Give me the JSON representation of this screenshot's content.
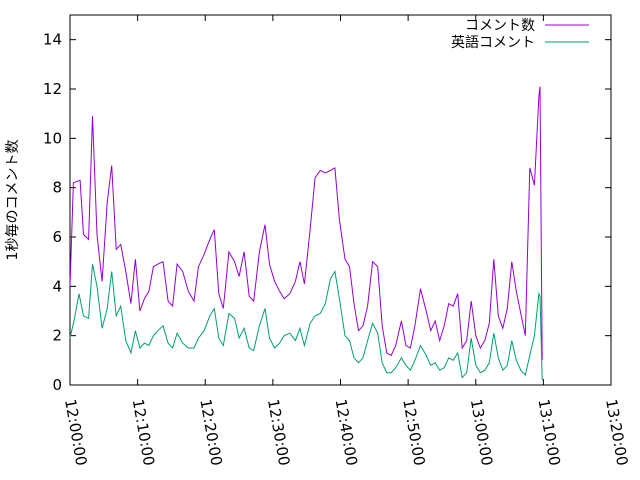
{
  "chart_data": {
    "type": "line",
    "title": "",
    "xlabel": "",
    "ylabel": "1秒毎のコメント数",
    "xlim": [
      "12:00:00",
      "13:20:00"
    ],
    "ylim": [
      0,
      15
    ],
    "grid": false,
    "legend": "top-right",
    "x_ticks": [
      "12:00:00",
      "12:10:00",
      "12:20:00",
      "12:30:00",
      "12:40:00",
      "12:50:00",
      "13:00:00",
      "13:10:00",
      "13:20:00"
    ],
    "y_ticks": [
      0,
      2,
      4,
      6,
      8,
      10,
      12,
      14
    ],
    "series": [
      {
        "name": "コメント数",
        "color": "#9400d3",
        "points": [
          [
            "12:00:00",
            4.0
          ],
          [
            "12:00:30",
            8.2
          ],
          [
            "12:01:30",
            8.3
          ],
          [
            "12:02:00",
            6.1
          ],
          [
            "12:02:45",
            5.9
          ],
          [
            "12:03:20",
            10.9
          ],
          [
            "12:04:00",
            6.1
          ],
          [
            "12:04:45",
            4.2
          ],
          [
            "12:05:30",
            7.4
          ],
          [
            "12:06:10",
            8.9
          ],
          [
            "12:06:50",
            5.5
          ],
          [
            "12:07:30",
            5.7
          ],
          [
            "12:08:15",
            4.6
          ],
          [
            "12:09:00",
            3.3
          ],
          [
            "12:09:40",
            5.1
          ],
          [
            "12:10:20",
            3.0
          ],
          [
            "12:11:00",
            3.5
          ],
          [
            "12:11:40",
            3.8
          ],
          [
            "12:12:20",
            4.8
          ],
          [
            "12:13:00",
            4.9
          ],
          [
            "12:13:45",
            5.0
          ],
          [
            "12:14:30",
            3.4
          ],
          [
            "12:15:10",
            3.2
          ],
          [
            "12:15:50",
            4.9
          ],
          [
            "12:16:40",
            4.6
          ],
          [
            "12:17:30",
            3.8
          ],
          [
            "12:18:20",
            3.4
          ],
          [
            "12:19:00",
            4.8
          ],
          [
            "12:19:50",
            5.3
          ],
          [
            "12:20:40",
            5.9
          ],
          [
            "12:21:20",
            6.3
          ],
          [
            "12:22:00",
            3.7
          ],
          [
            "12:22:40",
            3.1
          ],
          [
            "12:23:30",
            5.4
          ],
          [
            "12:24:20",
            5.0
          ],
          [
            "12:25:00",
            4.4
          ],
          [
            "12:25:45",
            5.4
          ],
          [
            "12:26:30",
            3.6
          ],
          [
            "12:27:10",
            3.4
          ],
          [
            "12:28:00",
            5.4
          ],
          [
            "12:28:50",
            6.5
          ],
          [
            "12:29:30",
            4.9
          ],
          [
            "12:30:15",
            4.2
          ],
          [
            "12:31:00",
            3.8
          ],
          [
            "12:31:40",
            3.5
          ],
          [
            "12:32:30",
            3.7
          ],
          [
            "12:33:20",
            4.2
          ],
          [
            "12:34:00",
            5.0
          ],
          [
            "12:34:40",
            4.1
          ],
          [
            "12:35:30",
            6.3
          ],
          [
            "12:36:15",
            8.4
          ],
          [
            "12:37:00",
            8.7
          ],
          [
            "12:37:45",
            8.6
          ],
          [
            "12:38:30",
            8.7
          ],
          [
            "12:39:10",
            8.8
          ],
          [
            "12:39:50",
            6.7
          ],
          [
            "12:40:40",
            5.1
          ],
          [
            "12:41:20",
            4.8
          ],
          [
            "12:42:00",
            3.3
          ],
          [
            "12:42:40",
            2.2
          ],
          [
            "12:43:20",
            2.4
          ],
          [
            "12:44:00",
            3.2
          ],
          [
            "12:44:45",
            5.0
          ],
          [
            "12:45:30",
            4.8
          ],
          [
            "12:46:10",
            2.4
          ],
          [
            "12:46:50",
            1.3
          ],
          [
            "12:47:30",
            1.2
          ],
          [
            "12:48:10",
            1.6
          ],
          [
            "12:49:00",
            2.6
          ],
          [
            "12:49:40",
            1.6
          ],
          [
            "12:50:20",
            1.5
          ],
          [
            "12:51:00",
            2.4
          ],
          [
            "12:51:50",
            3.9
          ],
          [
            "12:52:40",
            3.0
          ],
          [
            "12:53:20",
            2.2
          ],
          [
            "12:54:00",
            2.6
          ],
          [
            "12:54:40",
            1.8
          ],
          [
            "12:55:20",
            2.4
          ],
          [
            "12:56:00",
            3.3
          ],
          [
            "12:56:40",
            3.2
          ],
          [
            "12:57:20",
            3.7
          ],
          [
            "12:58:00",
            1.5
          ],
          [
            "12:58:40",
            1.8
          ],
          [
            "12:59:20",
            3.4
          ],
          [
            "13:00:00",
            2.0
          ],
          [
            "13:00:40",
            1.5
          ],
          [
            "13:01:20",
            1.8
          ],
          [
            "13:02:00",
            2.5
          ],
          [
            "13:02:40",
            5.1
          ],
          [
            "13:03:20",
            2.8
          ],
          [
            "13:04:00",
            2.3
          ],
          [
            "13:04:40",
            3.1
          ],
          [
            "13:05:20",
            5.0
          ],
          [
            "13:06:00",
            3.8
          ],
          [
            "13:06:40",
            2.9
          ],
          [
            "13:07:20",
            2.0
          ],
          [
            "13:08:00",
            8.8
          ],
          [
            "13:08:40",
            8.1
          ],
          [
            "13:09:20",
            11.7
          ],
          [
            "13:09:30",
            12.1
          ],
          [
            "13:09:50",
            1.0
          ]
        ]
      },
      {
        "name": "英語コメント",
        "color": "#009e73",
        "points": [
          [
            "12:00:00",
            1.9
          ],
          [
            "12:00:40",
            2.7
          ],
          [
            "12:01:20",
            3.7
          ],
          [
            "12:02:00",
            2.8
          ],
          [
            "12:02:45",
            2.7
          ],
          [
            "12:03:20",
            4.9
          ],
          [
            "12:04:00",
            4.0
          ],
          [
            "12:04:45",
            2.3
          ],
          [
            "12:05:30",
            3.1
          ],
          [
            "12:06:10",
            4.6
          ],
          [
            "12:06:50",
            2.8
          ],
          [
            "12:07:30",
            3.2
          ],
          [
            "12:08:15",
            1.8
          ],
          [
            "12:09:00",
            1.3
          ],
          [
            "12:09:40",
            2.2
          ],
          [
            "12:10:20",
            1.5
          ],
          [
            "12:11:00",
            1.7
          ],
          [
            "12:11:40",
            1.6
          ],
          [
            "12:12:20",
            2.0
          ],
          [
            "12:13:00",
            2.2
          ],
          [
            "12:13:45",
            2.4
          ],
          [
            "12:14:30",
            1.7
          ],
          [
            "12:15:10",
            1.5
          ],
          [
            "12:15:50",
            2.1
          ],
          [
            "12:16:40",
            1.7
          ],
          [
            "12:17:30",
            1.5
          ],
          [
            "12:18:20",
            1.5
          ],
          [
            "12:19:00",
            1.9
          ],
          [
            "12:19:50",
            2.2
          ],
          [
            "12:20:40",
            2.8
          ],
          [
            "12:21:20",
            3.1
          ],
          [
            "12:22:00",
            1.9
          ],
          [
            "12:22:40",
            1.6
          ],
          [
            "12:23:30",
            2.9
          ],
          [
            "12:24:20",
            2.7
          ],
          [
            "12:25:00",
            1.9
          ],
          [
            "12:25:45",
            2.3
          ],
          [
            "12:26:30",
            1.5
          ],
          [
            "12:27:10",
            1.4
          ],
          [
            "12:28:00",
            2.4
          ],
          [
            "12:28:50",
            3.1
          ],
          [
            "12:29:30",
            1.9
          ],
          [
            "12:30:15",
            1.5
          ],
          [
            "12:31:00",
            1.7
          ],
          [
            "12:31:40",
            2.0
          ],
          [
            "12:32:30",
            2.1
          ],
          [
            "12:33:20",
            1.8
          ],
          [
            "12:34:00",
            2.3
          ],
          [
            "12:34:40",
            1.6
          ],
          [
            "12:35:30",
            2.5
          ],
          [
            "12:36:15",
            2.8
          ],
          [
            "12:37:00",
            2.9
          ],
          [
            "12:37:45",
            3.3
          ],
          [
            "12:38:30",
            4.3
          ],
          [
            "12:39:10",
            4.6
          ],
          [
            "12:39:50",
            3.5
          ],
          [
            "12:40:40",
            2.0
          ],
          [
            "12:41:20",
            1.8
          ],
          [
            "12:42:00",
            1.1
          ],
          [
            "12:42:40",
            0.9
          ],
          [
            "12:43:20",
            1.1
          ],
          [
            "12:44:00",
            1.8
          ],
          [
            "12:44:45",
            2.5
          ],
          [
            "12:45:30",
            2.1
          ],
          [
            "12:46:10",
            0.9
          ],
          [
            "12:46:50",
            0.5
          ],
          [
            "12:47:30",
            0.5
          ],
          [
            "12:48:10",
            0.7
          ],
          [
            "12:49:00",
            1.1
          ],
          [
            "12:49:40",
            0.8
          ],
          [
            "12:50:20",
            0.6
          ],
          [
            "12:51:00",
            1.0
          ],
          [
            "12:51:50",
            1.6
          ],
          [
            "12:52:40",
            1.2
          ],
          [
            "12:53:20",
            0.8
          ],
          [
            "12:54:00",
            0.9
          ],
          [
            "12:54:40",
            0.6
          ],
          [
            "12:55:20",
            0.7
          ],
          [
            "12:56:00",
            1.1
          ],
          [
            "12:56:40",
            1.0
          ],
          [
            "12:57:20",
            1.3
          ],
          [
            "12:58:00",
            0.3
          ],
          [
            "12:58:40",
            0.5
          ],
          [
            "12:59:20",
            1.9
          ],
          [
            "13:00:00",
            0.8
          ],
          [
            "13:00:40",
            0.5
          ],
          [
            "13:01:20",
            0.6
          ],
          [
            "13:02:00",
            0.9
          ],
          [
            "13:02:40",
            2.1
          ],
          [
            "13:03:20",
            1.1
          ],
          [
            "13:04:00",
            0.6
          ],
          [
            "13:04:40",
            0.8
          ],
          [
            "13:05:20",
            1.8
          ],
          [
            "13:06:00",
            1.0
          ],
          [
            "13:06:40",
            0.6
          ],
          [
            "13:07:20",
            0.4
          ],
          [
            "13:08:00",
            1.2
          ],
          [
            "13:08:40",
            2.0
          ],
          [
            "13:09:20",
            3.7
          ],
          [
            "13:09:30",
            3.6
          ],
          [
            "13:09:50",
            0.2
          ]
        ]
      }
    ]
  }
}
